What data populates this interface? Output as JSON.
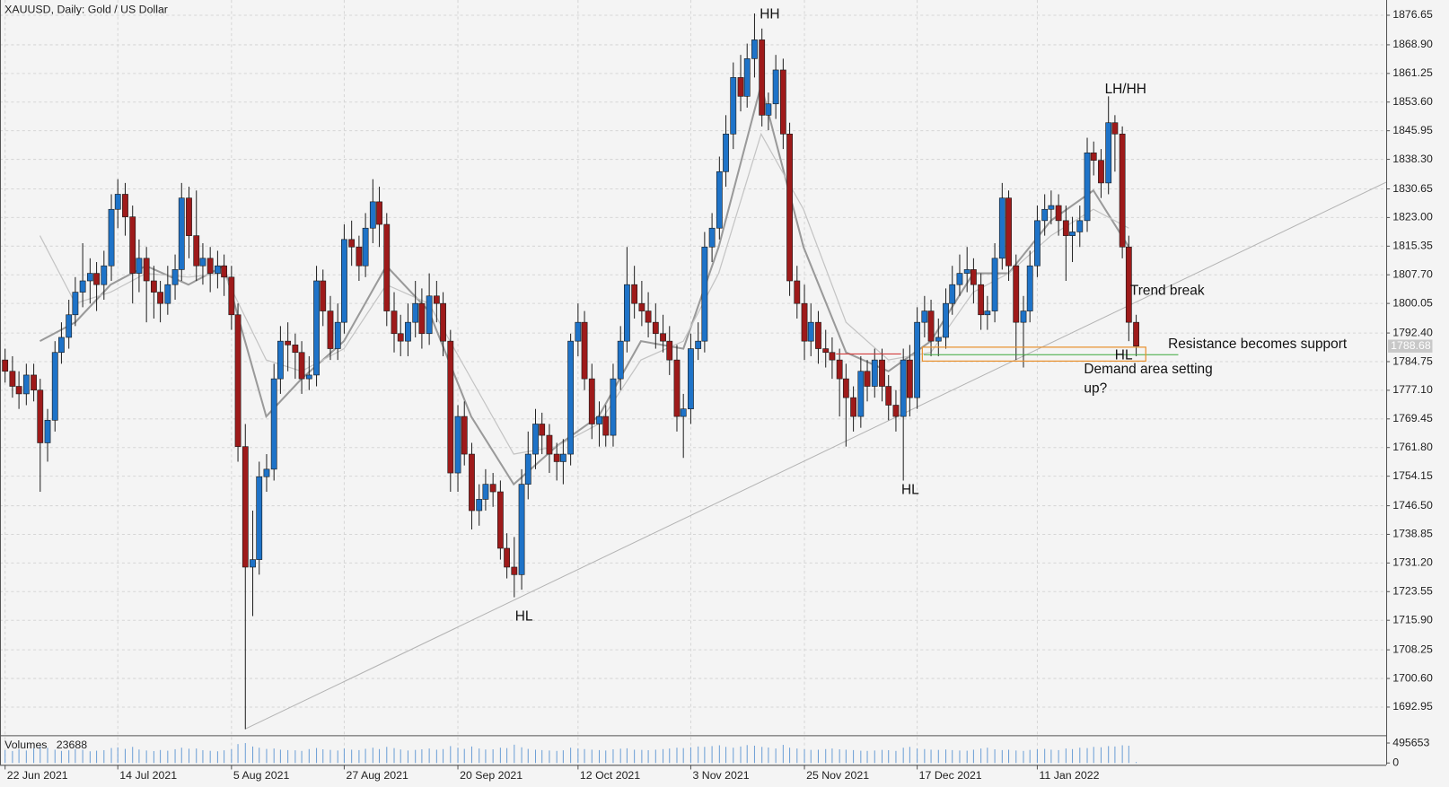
{
  "chart_data": {
    "type": "candlestick",
    "title": "XAUUSD, Daily:  Gold / US Dollar",
    "up_color": "#1e73c8",
    "down_color": "#9e1a1a",
    "grid": true,
    "ylim": [
      1685.6,
      1879.35
    ],
    "yticks": [
      1876.65,
      {
        "value": 1868.9,
        "label": "1868.90"
      },
      1861.25,
      {
        "value": 1853.6,
        "label": "1853.60"
      },
      1845.95,
      {
        "value": 1838.3,
        "label": "1838.30"
      },
      1830.65,
      {
        "value": 1823,
        "label": "1823.00"
      },
      1815.35,
      {
        "value": 1807.7,
        "label": "1807.70"
      },
      1800.05,
      {
        "value": 1792.4,
        "label": "1792.40"
      },
      1784.75,
      {
        "value": 1777.1,
        "label": "1777.10"
      },
      1769.45,
      {
        "value": 1761.8,
        "label": "1761.80"
      },
      1754.15,
      {
        "value": 1746.5,
        "label": "1746.50"
      },
      1738.85,
      {
        "value": 1731.2,
        "label": "1731.20"
      },
      1723.55,
      {
        "value": 1715.9,
        "label": "1715.90"
      },
      1708.25,
      {
        "value": 1700.6,
        "label": "1700.60"
      },
      1692.95
    ],
    "xlim": [
      -0.65,
      195.4
    ],
    "xticks": [
      {
        "value": 0,
        "label": "22 Jun 2021"
      },
      {
        "value": 16,
        "label": "14 Jul 2021"
      },
      {
        "value": 32,
        "label": "5 Aug 2021"
      },
      {
        "value": 48,
        "label": "27 Aug 2021"
      },
      {
        "value": 64,
        "label": "20 Sep 2021"
      },
      {
        "value": 81,
        "label": "12 Oct 2021"
      },
      {
        "value": 97,
        "label": "3 Nov 2021"
      },
      {
        "value": 113,
        "label": "25 Nov 2021"
      },
      {
        "value": 129,
        "label": "17 Dec 2021"
      },
      {
        "value": 146,
        "label": "11 Jan 2022"
      }
    ],
    "ohlc": [
      [
        1785,
        1788,
        1779,
        1782
      ],
      [
        1782,
        1786,
        1775,
        1778
      ],
      [
        1778,
        1782,
        1772,
        1776
      ],
      [
        1776,
        1784,
        1773,
        1781
      ],
      [
        1781,
        1784,
        1774,
        1777
      ],
      [
        1777,
        1780,
        1750,
        1763
      ],
      [
        1763,
        1772,
        1758,
        1769
      ],
      [
        1769,
        1790,
        1766,
        1787
      ],
      [
        1787,
        1795,
        1784,
        1791
      ],
      [
        1791,
        1801,
        1788,
        1797
      ],
      [
        1797,
        1807,
        1794,
        1803
      ],
      [
        1803,
        1816,
        1799,
        1806
      ],
      [
        1806,
        1812,
        1800,
        1808
      ],
      [
        1808,
        1811,
        1798,
        1805
      ],
      [
        1805,
        1814,
        1801,
        1810
      ],
      [
        1810,
        1829,
        1806,
        1825
      ],
      [
        1825,
        1833,
        1820,
        1829
      ],
      [
        1829,
        1832,
        1818,
        1823
      ],
      [
        1823,
        1826,
        1800,
        1808
      ],
      [
        1808,
        1817,
        1803,
        1812
      ],
      [
        1812,
        1815,
        1795,
        1806
      ],
      [
        1806,
        1810,
        1796,
        1803
      ],
      [
        1803,
        1806,
        1795,
        1800
      ],
      [
        1800,
        1810,
        1797,
        1805
      ],
      [
        1805,
        1813,
        1801,
        1809
      ],
      [
        1809,
        1832,
        1806,
        1828
      ],
      [
        1828,
        1831,
        1812,
        1818
      ],
      [
        1818,
        1830,
        1806,
        1810
      ],
      [
        1810,
        1816,
        1805,
        1812
      ],
      [
        1812,
        1815,
        1803,
        1808
      ],
      [
        1808,
        1814,
        1804,
        1810
      ],
      [
        1810,
        1813,
        1802,
        1807
      ],
      [
        1807,
        1810,
        1793,
        1797
      ],
      [
        1797,
        1800,
        1758,
        1762
      ],
      [
        1762,
        1768,
        1687,
        1730
      ],
      [
        1730,
        1745,
        1717,
        1732
      ],
      [
        1732,
        1758,
        1728,
        1754
      ],
      [
        1754,
        1760,
        1750,
        1756
      ],
      [
        1756,
        1784,
        1753,
        1780
      ],
      [
        1780,
        1794,
        1776,
        1790
      ],
      [
        1790,
        1795,
        1782,
        1789
      ],
      [
        1789,
        1792,
        1780,
        1787
      ],
      [
        1787,
        1790,
        1776,
        1780
      ],
      [
        1780,
        1786,
        1777,
        1781
      ],
      [
        1781,
        1810,
        1778,
        1806
      ],
      [
        1806,
        1809,
        1794,
        1798
      ],
      [
        1798,
        1802,
        1785,
        1788
      ],
      [
        1788,
        1800,
        1785,
        1795
      ],
      [
        1795,
        1821,
        1792,
        1817
      ],
      [
        1817,
        1822,
        1810,
        1815
      ],
      [
        1815,
        1818,
        1806,
        1810
      ],
      [
        1810,
        1824,
        1807,
        1820
      ],
      [
        1820,
        1833,
        1816,
        1827
      ],
      [
        1827,
        1831,
        1815,
        1821
      ],
      [
        1821,
        1824,
        1794,
        1798
      ],
      [
        1798,
        1803,
        1787,
        1792
      ],
      [
        1792,
        1797,
        1786,
        1790
      ],
      [
        1790,
        1800,
        1786,
        1795
      ],
      [
        1795,
        1806,
        1791,
        1800
      ],
      [
        1800,
        1804,
        1788,
        1792
      ],
      [
        1792,
        1808,
        1789,
        1802
      ],
      [
        1802,
        1806,
        1795,
        1800
      ],
      [
        1800,
        1803,
        1786,
        1790
      ],
      [
        1790,
        1793,
        1750,
        1755
      ],
      [
        1755,
        1773,
        1750,
        1770
      ],
      [
        1770,
        1774,
        1757,
        1760
      ],
      [
        1760,
        1763,
        1740,
        1745
      ],
      [
        1745,
        1752,
        1741,
        1748
      ],
      [
        1748,
        1756,
        1745,
        1752
      ],
      [
        1752,
        1755,
        1746,
        1750
      ],
      [
        1750,
        1753,
        1732,
        1735
      ],
      [
        1735,
        1739,
        1727,
        1730
      ],
      [
        1730,
        1738,
        1722,
        1728
      ],
      [
        1728,
        1756,
        1724,
        1752
      ],
      [
        1752,
        1766,
        1748,
        1760
      ],
      [
        1760,
        1772,
        1756,
        1768
      ],
      [
        1768,
        1771,
        1760,
        1765
      ],
      [
        1765,
        1768,
        1755,
        1760
      ],
      [
        1760,
        1763,
        1753,
        1758
      ],
      [
        1758,
        1764,
        1752,
        1760
      ],
      [
        1760,
        1792,
        1757,
        1790
      ],
      [
        1790,
        1800,
        1786,
        1795
      ],
      [
        1795,
        1798,
        1777,
        1780
      ],
      [
        1780,
        1784,
        1764,
        1768
      ],
      [
        1768,
        1774,
        1762,
        1770
      ],
      [
        1770,
        1773,
        1762,
        1765
      ],
      [
        1765,
        1784,
        1762,
        1780
      ],
      [
        1780,
        1794,
        1777,
        1790
      ],
      [
        1790,
        1815,
        1787,
        1805
      ],
      [
        1805,
        1810,
        1796,
        1800
      ],
      [
        1800,
        1806,
        1794,
        1798
      ],
      [
        1798,
        1803,
        1791,
        1795
      ],
      [
        1795,
        1800,
        1788,
        1792
      ],
      [
        1792,
        1797,
        1787,
        1790
      ],
      [
        1790,
        1794,
        1781,
        1785
      ],
      [
        1785,
        1789,
        1766,
        1770
      ],
      [
        1770,
        1776,
        1759,
        1772
      ],
      [
        1772,
        1792,
        1768,
        1788
      ],
      [
        1788,
        1795,
        1785,
        1790
      ],
      [
        1790,
        1819,
        1787,
        1815
      ],
      [
        1815,
        1824,
        1811,
        1820
      ],
      [
        1820,
        1839,
        1817,
        1835
      ],
      [
        1835,
        1850,
        1831,
        1845
      ],
      [
        1845,
        1864,
        1841,
        1860
      ],
      [
        1860,
        1866,
        1851,
        1855
      ],
      [
        1855,
        1869,
        1852,
        1865
      ],
      [
        1865,
        1877,
        1860,
        1870
      ],
      [
        1870,
        1873,
        1847,
        1850
      ],
      [
        1850,
        1856,
        1846,
        1853
      ],
      [
        1853,
        1866,
        1849,
        1862
      ],
      [
        1862,
        1865,
        1841,
        1845
      ],
      [
        1845,
        1848,
        1802,
        1806
      ],
      [
        1806,
        1810,
        1796,
        1800
      ],
      [
        1800,
        1805,
        1785,
        1790
      ],
      [
        1790,
        1800,
        1786,
        1795
      ],
      [
        1795,
        1798,
        1784,
        1788
      ],
      [
        1788,
        1793,
        1783,
        1787
      ],
      [
        1787,
        1791,
        1780,
        1785
      ],
      [
        1785,
        1788,
        1770,
        1780
      ],
      [
        1780,
        1784,
        1762,
        1775
      ],
      [
        1775,
        1778,
        1766,
        1770
      ],
      [
        1770,
        1786,
        1767,
        1782
      ],
      [
        1782,
        1785,
        1774,
        1778
      ],
      [
        1778,
        1788,
        1775,
        1785
      ],
      [
        1785,
        1788,
        1774,
        1778
      ],
      [
        1778,
        1781,
        1769,
        1773
      ],
      [
        1773,
        1777,
        1766,
        1770
      ],
      [
        1770,
        1788,
        1753,
        1785
      ],
      [
        1785,
        1789,
        1770,
        1775
      ],
      [
        1775,
        1799,
        1772,
        1795
      ],
      [
        1795,
        1802,
        1791,
        1798
      ],
      [
        1798,
        1801,
        1786,
        1790
      ],
      [
        1790,
        1796,
        1786,
        1791
      ],
      [
        1791,
        1804,
        1788,
        1800
      ],
      [
        1800,
        1810,
        1797,
        1805
      ],
      [
        1805,
        1813,
        1802,
        1808
      ],
      [
        1808,
        1815,
        1803,
        1809
      ],
      [
        1809,
        1812,
        1800,
        1805
      ],
      [
        1805,
        1808,
        1793,
        1797
      ],
      [
        1797,
        1802,
        1793,
        1798
      ],
      [
        1798,
        1816,
        1795,
        1812
      ],
      [
        1812,
        1832,
        1809,
        1828
      ],
      [
        1828,
        1830,
        1806,
        1810
      ],
      [
        1810,
        1813,
        1785,
        1795
      ],
      [
        1795,
        1802,
        1783,
        1798
      ],
      [
        1798,
        1814,
        1795,
        1810
      ],
      [
        1810,
        1826,
        1807,
        1822
      ],
      [
        1822,
        1829,
        1818,
        1825
      ],
      [
        1825,
        1830,
        1821,
        1826
      ],
      [
        1826,
        1829,
        1818,
        1822
      ],
      [
        1822,
        1826,
        1806,
        1818
      ],
      [
        1818,
        1823,
        1811,
        1819
      ],
      [
        1819,
        1826,
        1815,
        1822
      ],
      [
        1822,
        1844,
        1819,
        1840
      ],
      [
        1840,
        1843,
        1834,
        1838
      ],
      [
        1838,
        1841,
        1828,
        1832
      ],
      [
        1832,
        1855,
        1829,
        1848
      ],
      [
        1848,
        1850,
        1835,
        1845
      ],
      [
        1845,
        1847,
        1812,
        1815
      ],
      [
        1815,
        1818,
        1790,
        1795
      ],
      [
        1795,
        1797,
        1786,
        1788.68
      ]
    ],
    "moving_averages": [
      {
        "color": "#9a9a9a",
        "x": [
          5,
          10,
          15,
          20,
          26,
          31,
          37,
          42,
          48,
          54,
          60,
          66,
          72,
          78,
          84,
          90,
          96,
          101,
          107,
          113,
          119,
          125,
          131,
          137,
          142,
          148,
          154,
          159
        ],
        "values": [
          1790,
          1795,
          1805,
          1810,
          1805,
          1810,
          1770,
          1780,
          1790,
          1810,
          1798,
          1770,
          1752,
          1762,
          1770,
          1790,
          1788,
          1815,
          1858,
          1815,
          1787,
          1782,
          1790,
          1808,
          1808,
          1822,
          1830,
          1815
        ]
      },
      {
        "color": "#c4c4c4",
        "x": [
          5,
          10,
          15,
          20,
          26,
          31,
          37,
          42,
          48,
          54,
          60,
          66,
          72,
          78,
          84,
          90,
          96,
          101,
          107,
          113,
          119,
          125,
          131,
          137,
          142,
          148,
          154,
          159
        ],
        "values": [
          1818,
          1800,
          1803,
          1808,
          1807,
          1808,
          1785,
          1782,
          1788,
          1805,
          1800,
          1780,
          1760,
          1762,
          1768,
          1785,
          1790,
          1808,
          1845,
          1825,
          1795,
          1785,
          1787,
          1803,
          1808,
          1818,
          1825,
          1820
        ]
      }
    ],
    "trendline": {
      "color": "#b4b4b4",
      "x": [
        34,
        195.4
      ],
      "values": [
        1687,
        1832.2
      ]
    },
    "levels": [
      {
        "color": "#d23c3c",
        "value": 1786.6,
        "x": [
          117.6,
          126.8
        ]
      },
      {
        "color": "#3aa83a",
        "value": 1786.4,
        "x": [
          130,
          166
        ]
      }
    ],
    "zone": {
      "color": "#e8912f",
      "values": [
        1784.7,
        1788.4
      ],
      "x": [
        129.8,
        161.4
      ]
    },
    "annotations": [
      "HH",
      "LH/HH",
      "Trend break",
      "Resistance becomes support",
      "HL",
      "Demand area setting",
      "up?",
      "HL",
      "HL"
    ],
    "volume": {
      "label": "Volumes",
      "color": "#6d9fd6",
      "ylim": [
        0,
        620000
      ],
      "yticks": [
        495653,
        0
      ],
      "values": [
        320000,
        298000,
        340000,
        310000,
        365000,
        420000,
        380000,
        330000,
        300000,
        315000,
        345000,
        330000,
        290000,
        305000,
        318000,
        372000,
        390000,
        350000,
        400000,
        335000,
        310000,
        296000,
        322000,
        305000,
        342000,
        380000,
        355000,
        360000,
        318000,
        302000,
        290000,
        315000,
        340000,
        470000,
        495000,
        410000,
        380000,
        350000,
        360000,
        330000,
        320000,
        315000,
        300000,
        345000,
        372000,
        340000,
        325000,
        310000,
        360000,
        330000,
        320000,
        352000,
        380000,
        345000,
        400000,
        370000,
        335000,
        310000,
        325000,
        340000,
        360000,
        330000,
        345000,
        420000,
        380000,
        350000,
        410000,
        360000,
        335000,
        340000,
        380000,
        370000,
        455000,
        390000,
        350000,
        330000,
        320000,
        310000,
        300000,
        315000,
        380000,
        360000,
        345000,
        330000,
        320000,
        310000,
        340000,
        355000,
        365000,
        330000,
        325000,
        318000,
        330000,
        345000,
        360000,
        380000,
        370000,
        390000,
        410000,
        400000,
        420000,
        440000,
        400000,
        380000,
        410000,
        445000,
        430000,
        400000,
        385000,
        360000,
        450000,
        380000,
        360000,
        340000,
        325000,
        330000,
        345000,
        360000,
        340000,
        330000,
        320000,
        305000,
        300000,
        310000,
        325000,
        318000,
        300000,
        380000,
        400000,
        360000,
        345000,
        330000,
        325000,
        335000,
        320000,
        310000,
        305000,
        330000,
        360000,
        380000,
        340000,
        320000,
        330000,
        310000,
        300000,
        325000,
        340000,
        350000,
        330000,
        320000,
        360000,
        345000,
        380000,
        370000,
        400000,
        390000,
        420000,
        410000,
        440000,
        430000,
        23688
      ]
    }
  }
}
